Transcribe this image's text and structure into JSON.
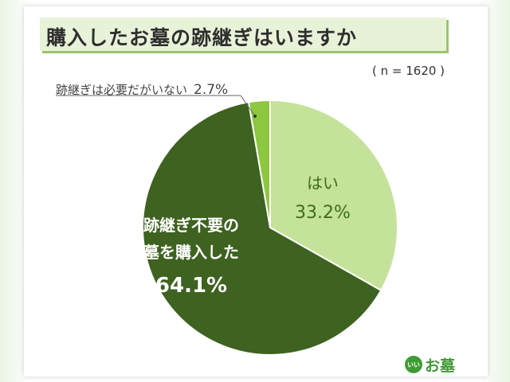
{
  "title": "購入したお墓の跡継ぎはいますか",
  "sample_note": "( n = 1620 )",
  "logo": {
    "badge": "いい",
    "text": "お墓"
  },
  "colors": {
    "yes": "#c5e29a",
    "no_successor_needed": "#3e6220",
    "no_successor": "#8dc63f",
    "title_band": "#e8f2d8",
    "title_shadow": "#9cc46c",
    "logo": "#3f9b35"
  },
  "chart_data": {
    "type": "pie",
    "title": "購入したお墓の跡継ぎはいますか",
    "n": 1620,
    "start_angle_deg": 0,
    "direction": "clockwise",
    "slices": [
      {
        "label": "はい",
        "value": 33.2,
        "display": "33.2%",
        "color": "#c5e29a"
      },
      {
        "label": "跡継ぎ不要の墓を購入した",
        "label_lines": [
          "跡継ぎ不要の",
          "墓を購入した"
        ],
        "value": 64.1,
        "display": "64.1%",
        "color": "#3e6220"
      },
      {
        "label": "跡継ぎは必要だがいない",
        "value": 2.7,
        "display": "2.7%",
        "color": "#8dc63f"
      }
    ]
  }
}
